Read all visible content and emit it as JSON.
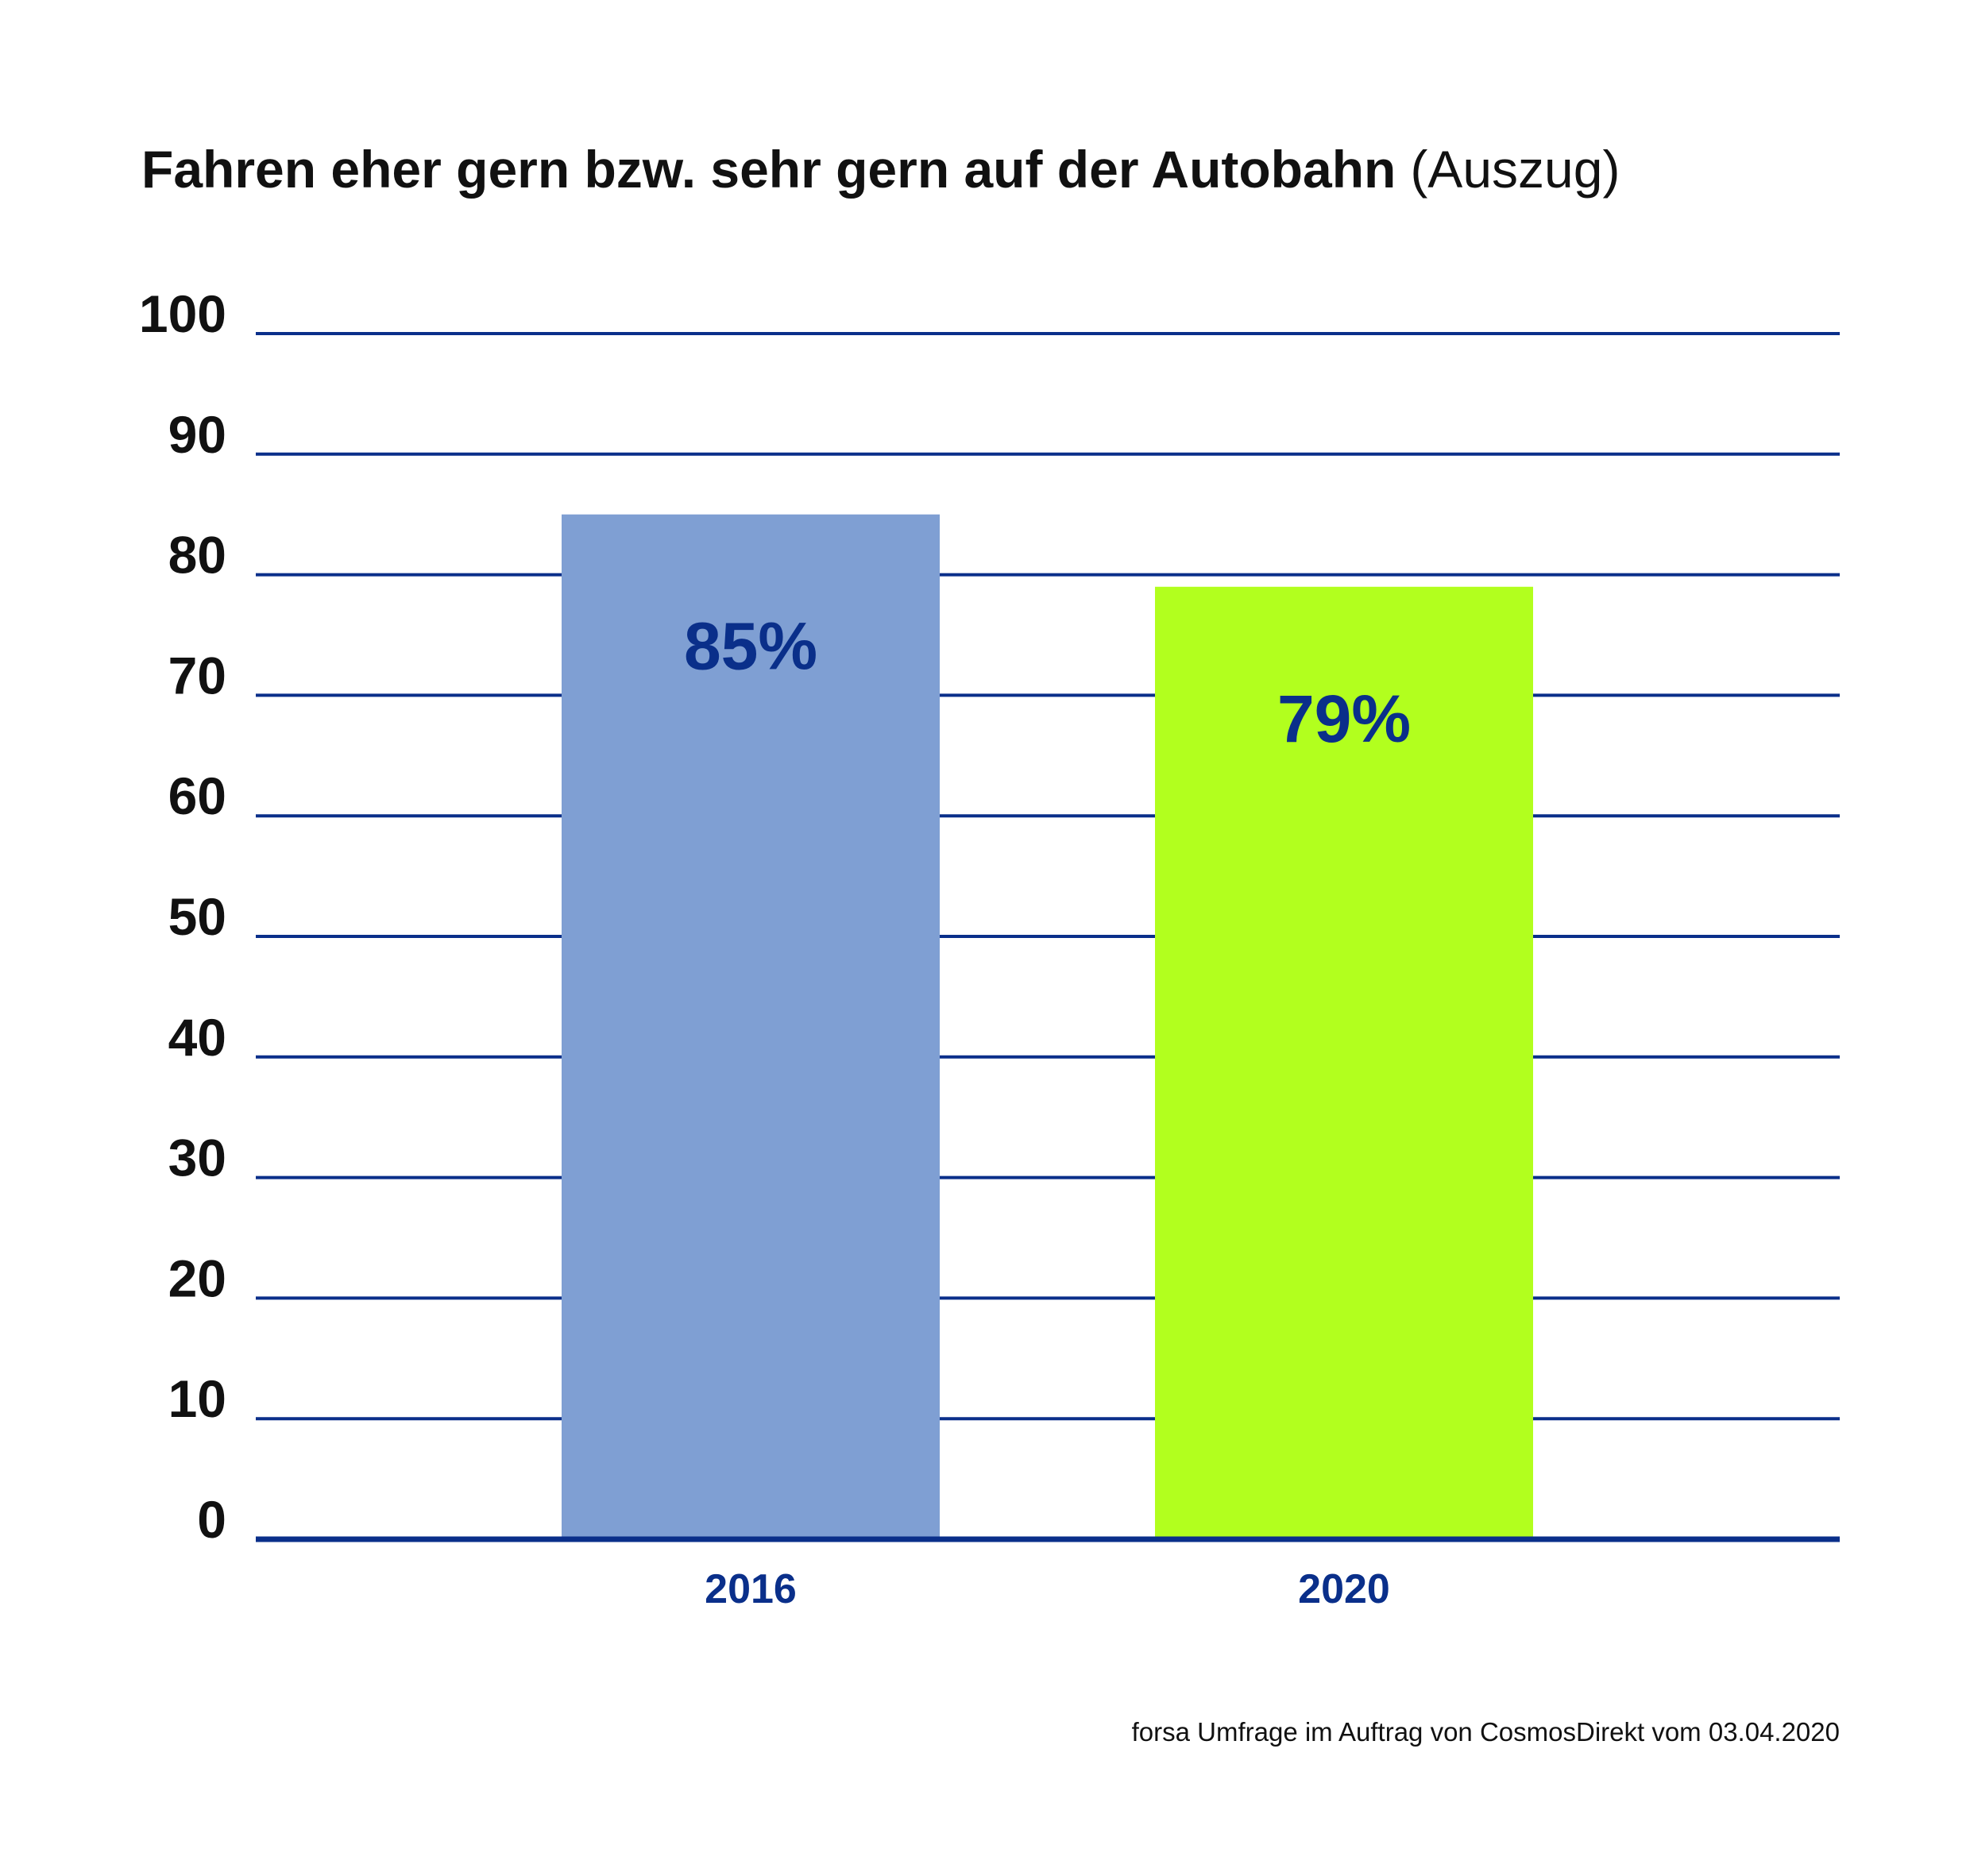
{
  "chart_data": {
    "type": "bar",
    "title": "Fahren eher gern bzw. sehr gern auf der Autobahn",
    "title_suffix": "(Auszug)",
    "categories": [
      "2016",
      "2020"
    ],
    "values": [
      85,
      79
    ],
    "data_labels": [
      "85%",
      "79%"
    ],
    "bar_colors": [
      "#7f9fd3",
      "#b2ff1e"
    ],
    "ylim": [
      0,
      100
    ],
    "yticks": [
      "0",
      "10",
      "20",
      "30",
      "40",
      "50",
      "60",
      "70",
      "80",
      "90",
      "100"
    ],
    "grid": true,
    "grid_color": "#0a2f8a",
    "label_color": "#0a2f8a",
    "xlabel": "",
    "ylabel": "",
    "source": "forsa Umfrage im Auftrag von CosmosDirekt vom 03.04.2020"
  }
}
